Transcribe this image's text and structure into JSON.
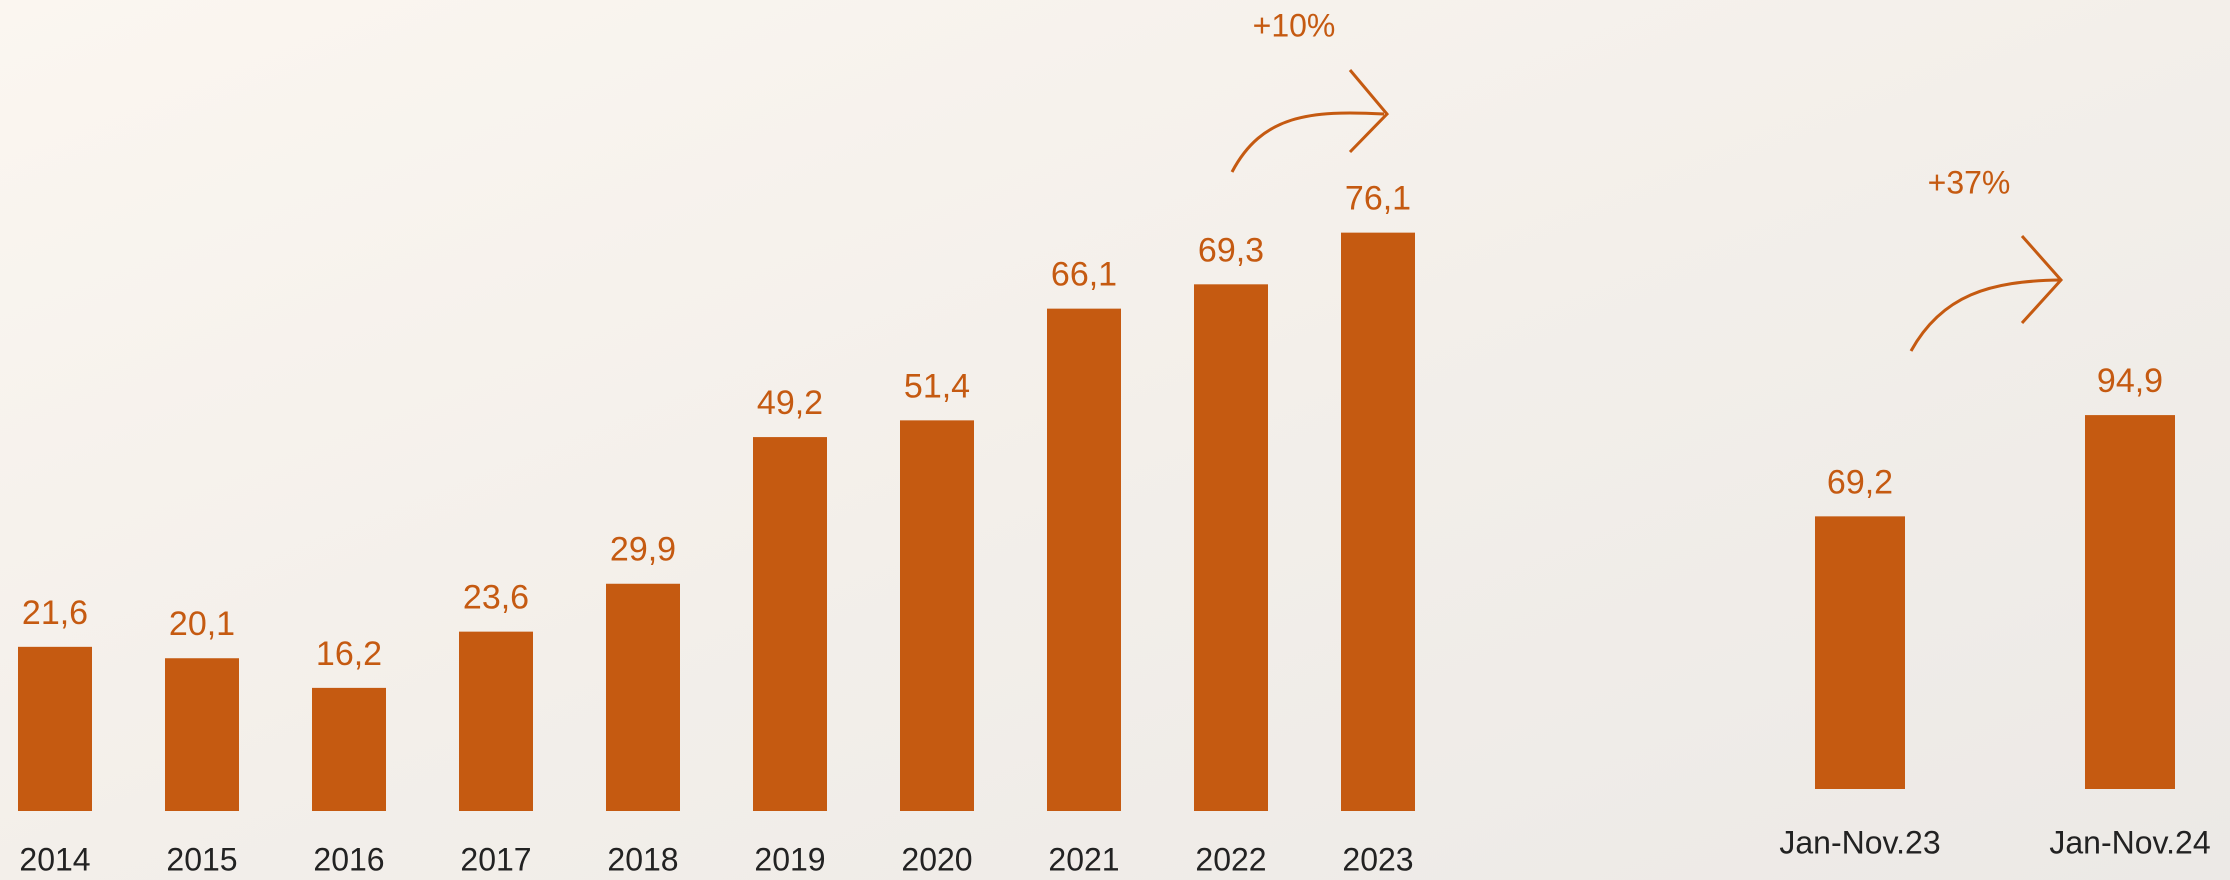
{
  "chart_data": [
    {
      "type": "bar",
      "categories": [
        "2014",
        "2015",
        "2016",
        "2017",
        "2018",
        "2019",
        "2020",
        "2021",
        "2022",
        "2023"
      ],
      "values": [
        21.6,
        20.1,
        16.2,
        23.6,
        29.9,
        49.2,
        51.4,
        66.1,
        69.3,
        76.1
      ],
      "value_labels": [
        "21,6",
        "20,1",
        "16,2",
        "23,6",
        "29,9",
        "49,2",
        "51,4",
        "66,1",
        "69,3",
        "76,1"
      ],
      "color": "#c55a11",
      "ylim": [
        0,
        100
      ],
      "annotation": "+10%"
    },
    {
      "type": "bar",
      "categories": [
        "Jan-Nov.23",
        "Jan-Nov.24"
      ],
      "values": [
        69.2,
        94.9
      ],
      "value_labels": [
        "69,2",
        "94,9"
      ],
      "color": "#c55a11",
      "ylim": [
        0,
        200
      ],
      "annotation": "+37%"
    }
  ]
}
